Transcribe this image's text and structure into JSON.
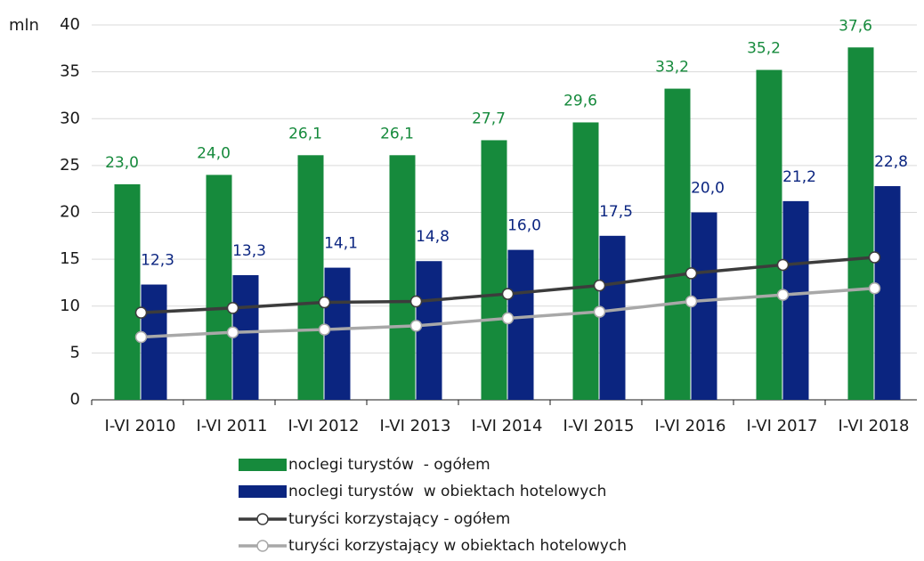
{
  "chart_data": {
    "type": "bar",
    "ylabel": "mln",
    "categories": [
      "I-VI 2010",
      "I-VI 2011",
      "I-VI 2012",
      "I-VI 2013",
      "I-VI 2014",
      "I-VI 2015",
      "I-VI 2016",
      "I-VI 2017",
      "I-VI 2018"
    ],
    "series": [
      {
        "name": "noclegi turystów  - ogółem",
        "type": "bar",
        "color": "#168a3c",
        "values": [
          23.0,
          24.0,
          26.1,
          26.1,
          27.7,
          29.6,
          33.2,
          35.2,
          37.6
        ],
        "value_labels": [
          "23,0",
          "24,0",
          "26,1",
          "26,1",
          "27,7",
          "29,6",
          "33,2",
          "35,2",
          "37,6"
        ]
      },
      {
        "name": "noclegi turystów  w obiektach hotelowych",
        "type": "bar",
        "color": "#0b2580",
        "values": [
          12.3,
          13.3,
          14.1,
          14.8,
          16.0,
          17.5,
          20.0,
          21.2,
          22.8
        ],
        "value_labels": [
          "12,3",
          "13,3",
          "14,1",
          "14,8",
          "16,0",
          "17,5",
          "20,0",
          "21,2",
          "22,8"
        ]
      },
      {
        "name": "turyści korzystający - ogółem",
        "type": "line",
        "color": "#3c3c3c",
        "values": [
          9.3,
          9.8,
          10.4,
          10.5,
          11.3,
          12.2,
          13.5,
          14.4,
          15.2
        ]
      },
      {
        "name": "turyści korzystający w obiektach hotelowych",
        "type": "line",
        "color": "#a8a8a8",
        "values": [
          6.7,
          7.2,
          7.5,
          7.9,
          8.7,
          9.4,
          10.5,
          11.2,
          11.9
        ]
      }
    ],
    "ylim": [
      0,
      40
    ],
    "yticks": [
      0,
      5,
      10,
      15,
      20,
      25,
      30,
      35,
      40
    ],
    "grid": true
  }
}
